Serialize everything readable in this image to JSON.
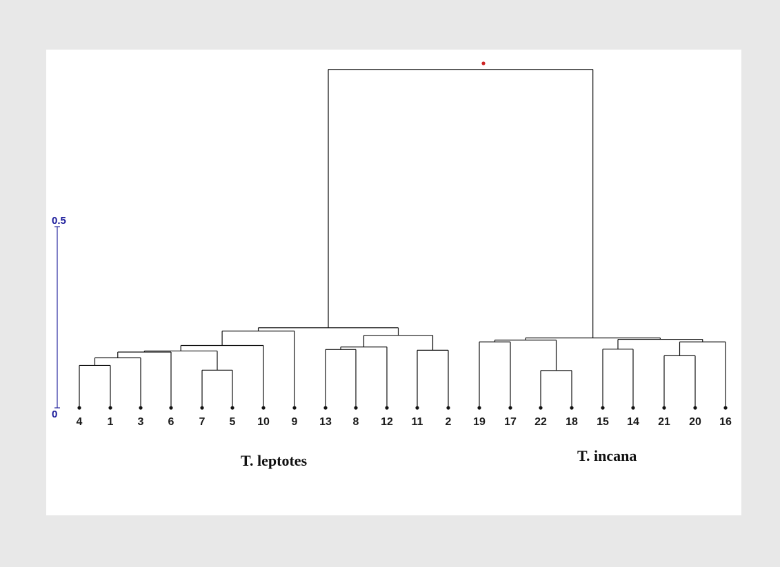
{
  "chart_data": {
    "type": "dendrogram",
    "scale": {
      "labels": [
        "0",
        "0.5"
      ],
      "values": [
        0,
        0.5
      ]
    },
    "leaves": [
      "4",
      "1",
      "3",
      "6",
      "7",
      "5",
      "10",
      "9",
      "13",
      "8",
      "12",
      "11",
      "2",
      "19",
      "17",
      "22",
      "18",
      "15",
      "14",
      "21",
      "20",
      "16"
    ],
    "groups": [
      "T. leptotes",
      "T. incana"
    ],
    "merges": [
      {
        "a": "7",
        "b": "5",
        "h": 0.104
      },
      {
        "a": "4",
        "b": "1",
        "h": 0.117
      },
      {
        "a": "22",
        "b": "18",
        "h": 0.103
      },
      {
        "a": "21",
        "b": "20",
        "h": 0.144
      },
      {
        "a": "11",
        "b": "2",
        "h": 0.159
      },
      {
        "a": "13",
        "b": "8",
        "h": 0.161
      },
      {
        "a": "15",
        "b": "14",
        "h": 0.162
      },
      {
        "a": "19",
        "b": "17",
        "h": 0.182
      },
      {
        "a": "4-1",
        "b": "3",
        "h": 0.138
      },
      {
        "a": "4-1-3",
        "b": "6",
        "h": 0.154
      },
      {
        "a": "6",
        "b": "7-5",
        "h": 0.157
      },
      {
        "a": "4-1-3-6-7-5",
        "b": "10",
        "h": 0.172
      },
      {
        "a": "13-8",
        "b": "12",
        "h": 0.168
      },
      {
        "a": "21-20",
        "b": "16",
        "h": 0.182
      },
      {
        "a": "19-17",
        "b": "22-18",
        "h": 0.187
      },
      {
        "a": "15-14",
        "b": "21-20-16",
        "h": 0.189
      },
      {
        "a": "leptotes-left",
        "b": "9",
        "h": 0.212
      },
      {
        "a": "13-8-12",
        "b": "11-2",
        "h": 0.2
      },
      {
        "a": "leptotes",
        "b": "",
        "h": 0.221
      },
      {
        "a": "incana",
        "b": "",
        "h": 0.193
      },
      {
        "a": "root",
        "b": "",
        "h": 0.934
      }
    ]
  }
}
